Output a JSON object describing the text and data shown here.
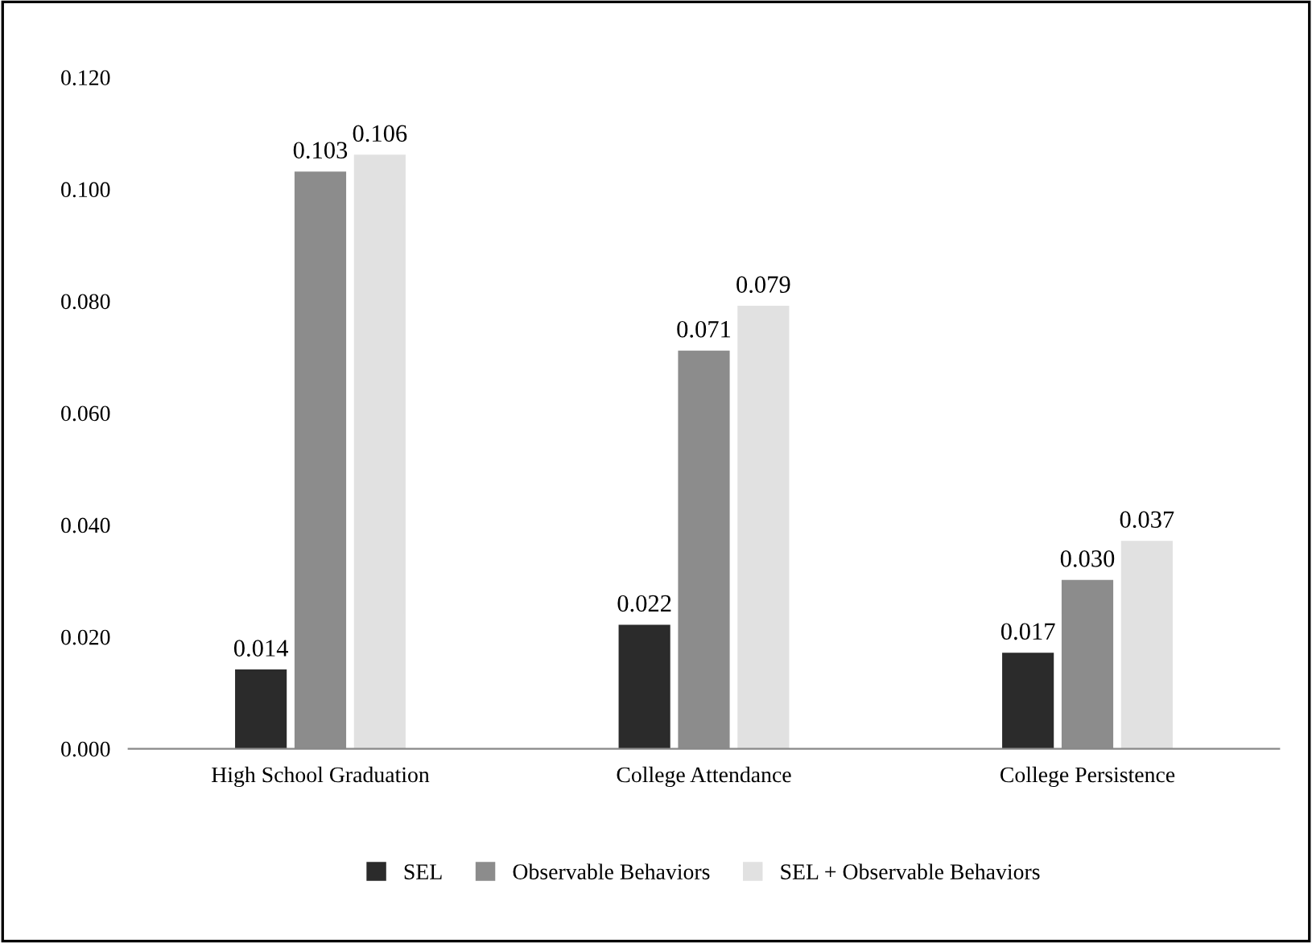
{
  "chart_data": {
    "type": "bar",
    "categories": [
      "High School Graduation",
      "College Attendance",
      "College Persistence"
    ],
    "series": [
      {
        "name": "SEL",
        "color": "#2b2b2b",
        "values": [
          0.014,
          0.022,
          0.017
        ],
        "value_labels": [
          "0.014",
          "0.022",
          "0.017"
        ]
      },
      {
        "name": "Observable Behaviors",
        "color": "#8c8c8c",
        "values": [
          0.103,
          0.071,
          0.03
        ],
        "value_labels": [
          "0.103",
          "0.071",
          "0.030"
        ]
      },
      {
        "name": "SEL + Observable Behaviors",
        "color": "#e1e1e1",
        "values": [
          0.106,
          0.079,
          0.037
        ],
        "value_labels": [
          "0.106",
          "0.079",
          "0.037"
        ]
      }
    ],
    "ylim": [
      0,
      0.12
    ],
    "yticks": [
      {
        "value": 0,
        "label": "0.000"
      },
      {
        "value": 0.02,
        "label": "0.020"
      },
      {
        "value": 0.04,
        "label": "0.040"
      },
      {
        "value": 0.06,
        "label": "0.060"
      },
      {
        "value": 0.08,
        "label": "0.080"
      },
      {
        "value": 0.1,
        "label": "0.100"
      },
      {
        "value": 0.12,
        "label": "0.120"
      }
    ],
    "grid": false,
    "legend": "bottom"
  }
}
